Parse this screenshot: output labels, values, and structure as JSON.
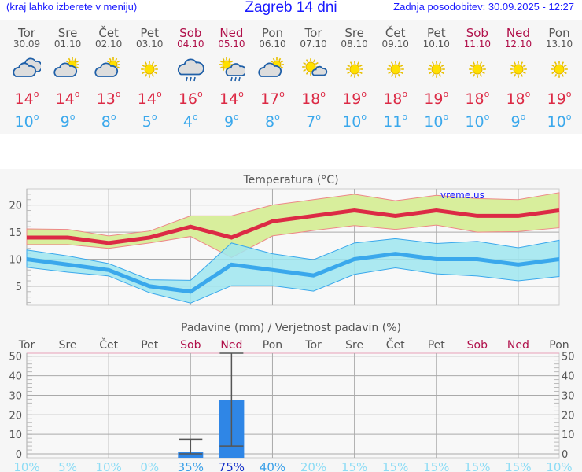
{
  "header": {
    "hint": "(kraj lahko izberete v meniju)",
    "title": "Zagreb 14 dni",
    "updated": "Zadnja posodobitev: 30.09.2025 - 12:27"
  },
  "days": [
    {
      "name": "Tor",
      "date": "30.09",
      "weekend": false,
      "icon": "cloudy-icon",
      "max": "14",
      "min": "10"
    },
    {
      "name": "Sre",
      "date": "01.10",
      "weekend": false,
      "icon": "partly-cloudy-icon",
      "max": "14",
      "min": "9"
    },
    {
      "name": "Čet",
      "date": "02.10",
      "weekend": false,
      "icon": "partly-cloudy-icon",
      "max": "13",
      "min": "8"
    },
    {
      "name": "Pet",
      "date": "03.10",
      "weekend": false,
      "icon": "sun-icon",
      "max": "14",
      "min": "5"
    },
    {
      "name": "Sob",
      "date": "04.10",
      "weekend": true,
      "icon": "cloud-rain-icon",
      "max": "16",
      "min": "4"
    },
    {
      "name": "Ned",
      "date": "05.10",
      "weekend": true,
      "icon": "sun-cloud-rain-icon",
      "max": "14",
      "min": "9"
    },
    {
      "name": "Pon",
      "date": "06.10",
      "weekend": false,
      "icon": "partly-cloudy-icon",
      "max": "17",
      "min": "8"
    },
    {
      "name": "Tor",
      "date": "07.10",
      "weekend": false,
      "icon": "sun-small-cloud-icon",
      "max": "18",
      "min": "7"
    },
    {
      "name": "Sre",
      "date": "08.10",
      "weekend": false,
      "icon": "sun-icon",
      "max": "19",
      "min": "10"
    },
    {
      "name": "Čet",
      "date": "09.10",
      "weekend": false,
      "icon": "sun-icon",
      "max": "18",
      "min": "11"
    },
    {
      "name": "Pet",
      "date": "10.10",
      "weekend": false,
      "icon": "sun-icon",
      "max": "19",
      "min": "10"
    },
    {
      "name": "Sob",
      "date": "11.10",
      "weekend": true,
      "icon": "sun-icon",
      "max": "18",
      "min": "10"
    },
    {
      "name": "Ned",
      "date": "12.10",
      "weekend": true,
      "icon": "sun-icon",
      "max": "18",
      "min": "9"
    },
    {
      "name": "Pon",
      "date": "13.10",
      "weekend": false,
      "icon": "sun-icon",
      "max": "19",
      "min": "10"
    }
  ],
  "colors": {
    "max": "#dc2a45",
    "min": "#3aa8ec",
    "weekend": "#b0104a",
    "maxband": "#d8ee9c",
    "minband": "#9fe6f0",
    "bar": "#2f86e6"
  },
  "chart_data": [
    {
      "type": "line",
      "title": "Temperatura (°C)",
      "watermark": "vreme.us",
      "ylim": [
        1.5,
        23
      ],
      "yticks": [
        5,
        10,
        15,
        20
      ],
      "grid": true,
      "series": [
        {
          "values": [
            14,
            14,
            13,
            14,
            16,
            14,
            17,
            18,
            19,
            18,
            19,
            18,
            18,
            19
          ],
          "band_upper": [
            15.6,
            15.5,
            14.3,
            15.2,
            18,
            18,
            20,
            21,
            22,
            20.8,
            21.8,
            21.2,
            21,
            22.3
          ],
          "band_lower": [
            12.7,
            12.7,
            12,
            13,
            14.2,
            10.3,
            14.3,
            15.3,
            16.2,
            15.5,
            16.3,
            15,
            15.1,
            15.8
          ]
        },
        {
          "values": [
            10,
            9,
            8,
            5,
            4,
            9,
            8,
            7,
            10,
            11,
            10,
            10,
            9,
            10
          ],
          "band_upper": [
            11.7,
            10.6,
            9.2,
            6.2,
            6.1,
            13,
            11,
            9.9,
            13,
            13.8,
            12.9,
            13.3,
            12.1,
            13.5
          ],
          "band_lower": [
            8.5,
            7.6,
            6.9,
            3.8,
            1.9,
            5.1,
            5.1,
            4.1,
            7.2,
            8.4,
            7.3,
            6.9,
            6,
            6.8
          ]
        }
      ]
    },
    {
      "type": "bar",
      "title": "Padavine (mm) / Verjetnost padavin (%)",
      "ylim": [
        -2,
        51.5
      ],
      "yticks": [
        0,
        10,
        20,
        30,
        40,
        50
      ],
      "grid": true,
      "categories": [
        "Tor",
        "Sre",
        "Čet",
        "Pet",
        "Sob",
        "Ned",
        "Pon",
        "Tor",
        "Sre",
        "Čet",
        "Pet",
        "Sob",
        "Ned",
        "Pon"
      ],
      "values": [
        0,
        0,
        0,
        0,
        1,
        27.5,
        0,
        0,
        0,
        0,
        0,
        0,
        0,
        0
      ],
      "error_low": [
        null,
        null,
        null,
        null,
        0,
        4,
        null,
        null,
        null,
        null,
        null,
        null,
        null,
        null
      ],
      "error_high": [
        null,
        null,
        null,
        null,
        7.5,
        51.5,
        null,
        null,
        null,
        null,
        null,
        null,
        null,
        null
      ],
      "probability": [
        "10%",
        "5%",
        "10%",
        "0%",
        "35%",
        "75%",
        "40%",
        "20%",
        "15%",
        "15%",
        "15%",
        "15%",
        "15%",
        "10%"
      ]
    }
  ]
}
